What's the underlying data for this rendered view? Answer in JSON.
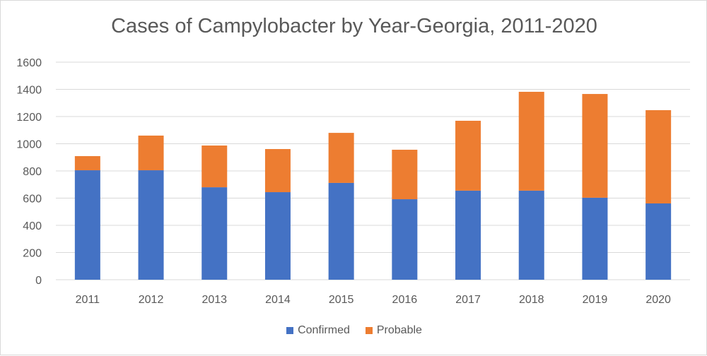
{
  "chart_data": {
    "type": "bar",
    "stacked": true,
    "title": "Cases of Campylobacter by Year-Georgia, 2011-2020",
    "xlabel": "",
    "ylabel": "",
    "categories": [
      "2011",
      "2012",
      "2013",
      "2014",
      "2015",
      "2016",
      "2017",
      "2018",
      "2019",
      "2020"
    ],
    "series": [
      {
        "name": "Confirmed",
        "color": "#4472C4",
        "values": [
          805,
          805,
          680,
          644,
          712,
          592,
          655,
          655,
          603,
          561
        ]
      },
      {
        "name": "Probable",
        "color": "#ED7D31",
        "values": [
          104,
          255,
          307,
          317,
          368,
          364,
          514,
          727,
          763,
          686
        ]
      }
    ],
    "ylim": [
      0,
      1600
    ],
    "yticks": [
      "0",
      "200",
      "400",
      "600",
      "800",
      "1000",
      "1200",
      "1400",
      "1600"
    ],
    "grid": true,
    "legend": "bottom"
  }
}
